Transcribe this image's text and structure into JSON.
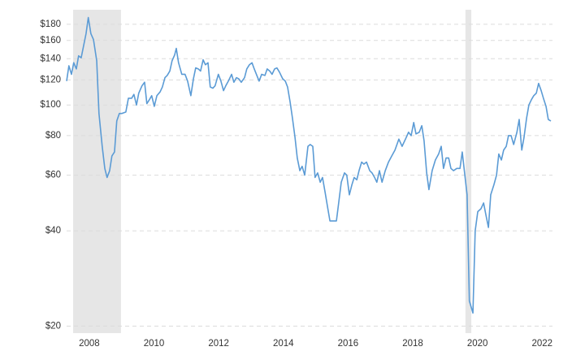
{
  "chart_data": {
    "type": "line",
    "log_y": true,
    "grid": true,
    "xlim": [
      2007.3,
      2022.32
    ],
    "xticks": [
      2008,
      2010,
      2012,
      2014,
      2016,
      2018,
      2020,
      2022
    ],
    "ylim": [
      19,
      200
    ],
    "yticks": [
      {
        "value": 20,
        "label": "$20"
      },
      {
        "value": 40,
        "label": "$40"
      },
      {
        "value": 60,
        "label": "$60"
      },
      {
        "value": 80,
        "label": "$80"
      },
      {
        "value": 100,
        "label": "$100"
      },
      {
        "value": 120,
        "label": "$120"
      },
      {
        "value": 140,
        "label": "$140"
      },
      {
        "value": 160,
        "label": "$160"
      },
      {
        "value": 180,
        "label": "$180"
      }
    ],
    "shaded_ranges": [
      [
        2007.5,
        2008.98
      ],
      [
        2019.63,
        2019.81
      ]
    ],
    "shade_color": "#e6e6e6",
    "series": [
      {
        "color": "#5b9bd5",
        "x": [
          2007.3,
          2007.37,
          2007.45,
          2007.52,
          2007.6,
          2007.67,
          2007.75,
          2007.82,
          2007.9,
          2007.97,
          2008.05,
          2008.13,
          2008.23,
          2008.3,
          2008.4,
          2008.48,
          2008.55,
          2008.63,
          2008.7,
          2008.78,
          2008.85,
          2008.93,
          2009.01,
          2009.13,
          2009.21,
          2009.31,
          2009.38,
          2009.46,
          2009.53,
          2009.63,
          2009.71,
          2009.78,
          2009.86,
          2009.93,
          2010.01,
          2010.09,
          2010.19,
          2010.26,
          2010.34,
          2010.41,
          2010.49,
          2010.56,
          2010.64,
          2010.69,
          2010.76,
          2010.86,
          2010.96,
          2011.04,
          2011.14,
          2011.22,
          2011.29,
          2011.37,
          2011.44,
          2011.52,
          2011.59,
          2011.67,
          2011.74,
          2011.82,
          2011.89,
          2011.99,
          2012.07,
          2012.15,
          2012.22,
          2012.3,
          2012.4,
          2012.47,
          2012.55,
          2012.62,
          2012.7,
          2012.8,
          2012.87,
          2012.95,
          2013.03,
          2013.1,
          2013.18,
          2013.25,
          2013.33,
          2013.43,
          2013.5,
          2013.58,
          2013.65,
          2013.73,
          2013.8,
          2013.88,
          2013.98,
          2014.06,
          2014.13,
          2014.21,
          2014.28,
          2014.36,
          2014.43,
          2014.51,
          2014.58,
          2014.66,
          2014.76,
          2014.83,
          2014.91,
          2014.98,
          2015.06,
          2015.14,
          2015.21,
          2015.29,
          2015.36,
          2015.44,
          2015.54,
          2015.64,
          2015.71,
          2015.79,
          2015.89,
          2015.96,
          2016.04,
          2016.12,
          2016.19,
          2016.27,
          2016.34,
          2016.42,
          2016.49,
          2016.57,
          2016.67,
          2016.74,
          2016.82,
          2016.89,
          2016.97,
          2017.05,
          2017.15,
          2017.25,
          2017.35,
          2017.45,
          2017.57,
          2017.67,
          2017.8,
          2017.87,
          2017.95,
          2018.03,
          2018.1,
          2018.2,
          2018.28,
          2018.35,
          2018.43,
          2018.5,
          2018.6,
          2018.7,
          2018.8,
          2018.88,
          2018.95,
          2019.03,
          2019.11,
          2019.18,
          2019.26,
          2019.36,
          2019.46,
          2019.53,
          2019.61,
          2019.68,
          2019.75,
          2019.86,
          2019.93,
          2020.01,
          2020.11,
          2020.19,
          2020.26,
          2020.34,
          2020.41,
          2020.51,
          2020.59,
          2020.66,
          2020.74,
          2020.81,
          2020.89,
          2020.96,
          2021.04,
          2021.12,
          2021.22,
          2021.29,
          2021.37,
          2021.44,
          2021.52,
          2021.59,
          2021.67,
          2021.74,
          2021.82,
          2021.89,
          2021.97,
          2022.04,
          2022.12,
          2022.19,
          2022.27
        ],
        "values": [
          119,
          133,
          125,
          136,
          130,
          143,
          141,
          153,
          168,
          189,
          168,
          161,
          138,
          94,
          74,
          63,
          59,
          62,
          69,
          71,
          89,
          94,
          94,
          95,
          105,
          105,
          108,
          100,
          109,
          115,
          118,
          101,
          104,
          107,
          99,
          107,
          110,
          114,
          122,
          124,
          128,
          138,
          144,
          151,
          136,
          125,
          125,
          119,
          107,
          121,
          131,
          130,
          128,
          139,
          134,
          136,
          114,
          113,
          115,
          125,
          119,
          111,
          115,
          119,
          125,
          118,
          122,
          121,
          118,
          122,
          130,
          134,
          136,
          130,
          124,
          119,
          125,
          124,
          130,
          128,
          125,
          130,
          131,
          127,
          121,
          119,
          114,
          102,
          91,
          79,
          68,
          62,
          64,
          60,
          74,
          75,
          74,
          59,
          61,
          57,
          59,
          53,
          48,
          43,
          43,
          43,
          49,
          57,
          61,
          60,
          52,
          56,
          59,
          58,
          62,
          66,
          65,
          66,
          62,
          61,
          59,
          57,
          62,
          57,
          62,
          66,
          69,
          72,
          78,
          74,
          79,
          82,
          80,
          88,
          81,
          82,
          86,
          77,
          61,
          54,
          62,
          67,
          70,
          74,
          63,
          68,
          68,
          63,
          62,
          63,
          63,
          71,
          60,
          52,
          24,
          22,
          40,
          46,
          47,
          49,
          45,
          41,
          52,
          56,
          60,
          70,
          67,
          72,
          74,
          80,
          80,
          75,
          82,
          90,
          72,
          79,
          91,
          100,
          104,
          107,
          109,
          117,
          111,
          105,
          99,
          90,
          89
        ]
      }
    ]
  }
}
